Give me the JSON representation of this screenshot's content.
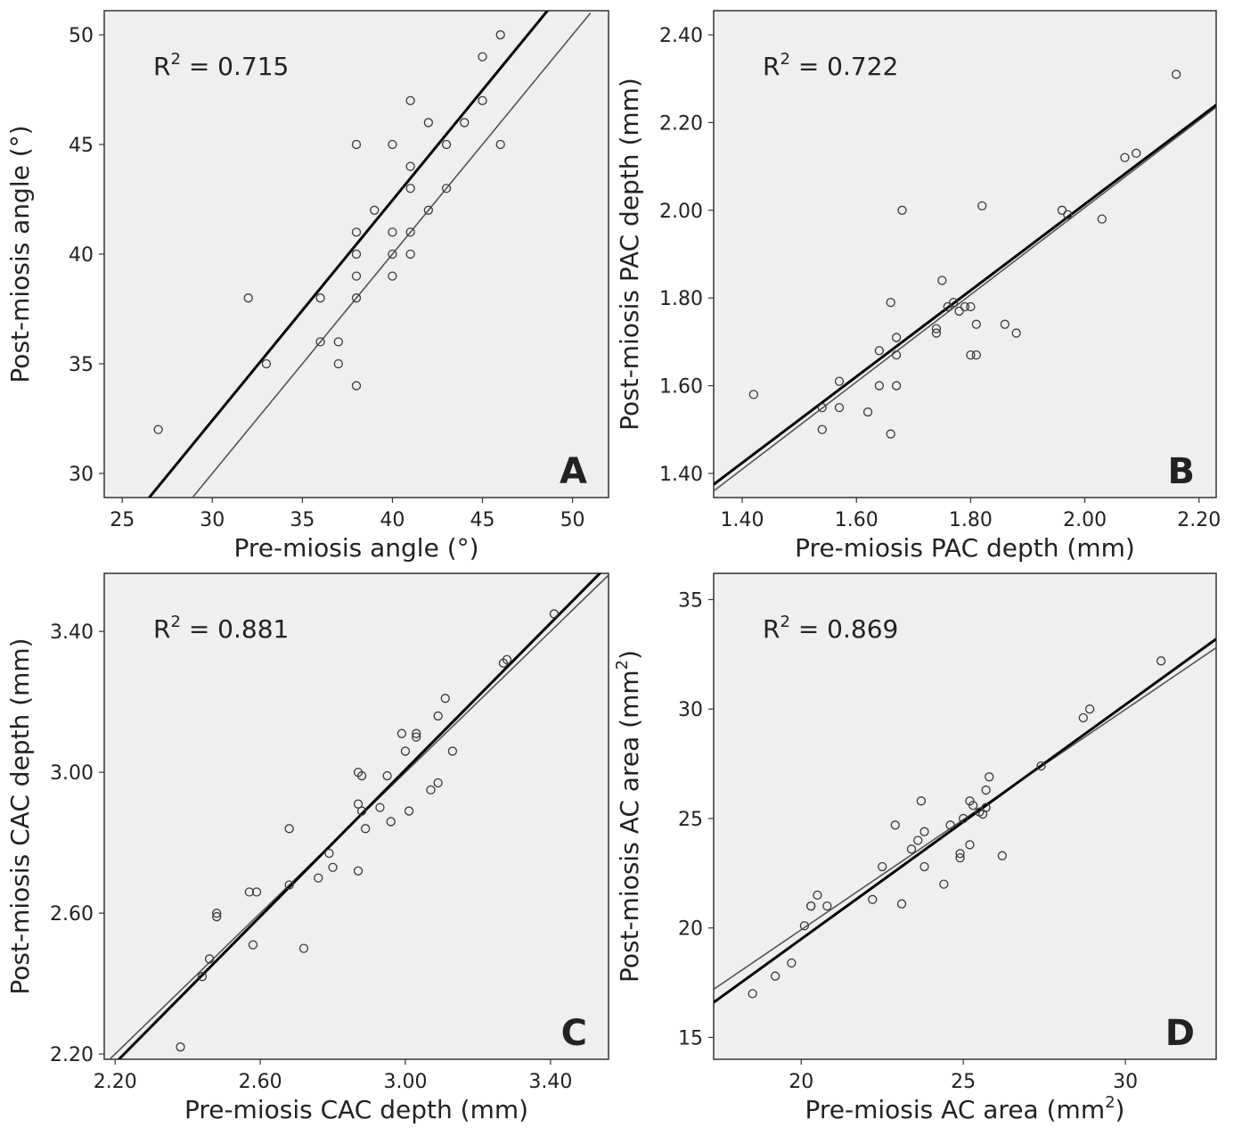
{
  "colors": {
    "plot_background": "#efefef",
    "frame": "#333333",
    "point_stroke": "#3a3a3a",
    "fit_line": "#000000",
    "identity_line": "#555555"
  },
  "chart_data": [
    {
      "type": "scatter",
      "panel_letter": "A",
      "r2_label": "R",
      "r2_sup": "2",
      "r2_value": " = 0.715",
      "xlabel": "Pre-miosis angle (°)",
      "ylabel": "Post-miosis angle (°)",
      "xlim": [
        24,
        52
      ],
      "ylim": [
        28.9,
        51.1
      ],
      "xticks": [
        25,
        30,
        35,
        40,
        45,
        50
      ],
      "yticks": [
        30,
        35,
        40,
        45,
        50
      ],
      "xtick_labels": [
        "25",
        "30",
        "35",
        "40",
        "45",
        "50"
      ],
      "ytick_labels": [
        "30",
        "35",
        "40",
        "45",
        "50"
      ],
      "points": [
        [
          27,
          32
        ],
        [
          32,
          38
        ],
        [
          33,
          35
        ],
        [
          36,
          38
        ],
        [
          36,
          36
        ],
        [
          37,
          36
        ],
        [
          37,
          35
        ],
        [
          38,
          45
        ],
        [
          38,
          41
        ],
        [
          38,
          40
        ],
        [
          38,
          39
        ],
        [
          38,
          38
        ],
        [
          38,
          34
        ],
        [
          39,
          42
        ],
        [
          40,
          45
        ],
        [
          40,
          41
        ],
        [
          40,
          40
        ],
        [
          40,
          39
        ],
        [
          41,
          47
        ],
        [
          41,
          44
        ],
        [
          41,
          43
        ],
        [
          41,
          41
        ],
        [
          41,
          40
        ],
        [
          42,
          46
        ],
        [
          42,
          42
        ],
        [
          43,
          45
        ],
        [
          43,
          43
        ],
        [
          44,
          46
        ],
        [
          45,
          49
        ],
        [
          45,
          47
        ],
        [
          46,
          50
        ],
        [
          46,
          45
        ]
      ],
      "fit_line": [
        [
          26.5,
          28.9
        ],
        [
          51,
          53.5
        ]
      ],
      "identity_line": [
        [
          28.9,
          28.9
        ],
        [
          51,
          51
        ]
      ]
    },
    {
      "type": "scatter",
      "panel_letter": "B",
      "r2_label": "R",
      "r2_sup": "2",
      "r2_value": " = 0.722",
      "xlabel": "Pre-miosis PAC depth (mm)",
      "ylabel": "Post-miosis PAC depth (mm)",
      "xlim": [
        1.35,
        2.23
      ],
      "ylim": [
        1.345,
        2.455
      ],
      "xticks": [
        1.4,
        1.6,
        1.8,
        2.0,
        2.2
      ],
      "yticks": [
        1.4,
        1.6,
        1.8,
        2.0,
        2.2,
        2.4
      ],
      "xtick_labels": [
        "1.40",
        "1.60",
        "1.80",
        "2.00",
        "2.20"
      ],
      "ytick_labels": [
        "1.40",
        "1.60",
        "1.80",
        "2.00",
        "2.20",
        "2.40"
      ],
      "points": [
        [
          1.42,
          1.58
        ],
        [
          1.54,
          1.55
        ],
        [
          1.54,
          1.5
        ],
        [
          1.57,
          1.61
        ],
        [
          1.57,
          1.55
        ],
        [
          1.62,
          1.54
        ],
        [
          1.64,
          1.68
        ],
        [
          1.64,
          1.6
        ],
        [
          1.66,
          1.79
        ],
        [
          1.66,
          1.49
        ],
        [
          1.67,
          1.71
        ],
        [
          1.67,
          1.67
        ],
        [
          1.67,
          1.6
        ],
        [
          1.68,
          2.0
        ],
        [
          1.74,
          1.73
        ],
        [
          1.74,
          1.72
        ],
        [
          1.75,
          1.84
        ],
        [
          1.76,
          1.78
        ],
        [
          1.77,
          1.79
        ],
        [
          1.78,
          1.77
        ],
        [
          1.79,
          1.78
        ],
        [
          1.8,
          1.78
        ],
        [
          1.8,
          1.67
        ],
        [
          1.81,
          1.74
        ],
        [
          1.81,
          1.67
        ],
        [
          1.82,
          2.01
        ],
        [
          1.86,
          1.74
        ],
        [
          1.88,
          1.72
        ],
        [
          1.96,
          2.0
        ],
        [
          1.97,
          1.99
        ],
        [
          2.03,
          1.98
        ],
        [
          2.07,
          2.12
        ],
        [
          2.09,
          2.13
        ],
        [
          2.16,
          2.31
        ]
      ],
      "fit_line": [
        [
          1.35,
          1.375
        ],
        [
          2.23,
          2.24
        ]
      ],
      "identity_line": [
        [
          1.35,
          1.36
        ],
        [
          2.23,
          2.235
        ]
      ]
    },
    {
      "type": "scatter",
      "panel_letter": "C",
      "r2_label": "R",
      "r2_sup": "2",
      "r2_value": " = 0.881",
      "xlabel": "Pre-miosis CAC depth (mm)",
      "ylabel": "Post-miosis CAC depth (mm)",
      "xlim": [
        2.17,
        3.56
      ],
      "ylim": [
        2.185,
        3.565
      ],
      "xticks": [
        2.2,
        2.6,
        3.0,
        3.4
      ],
      "yticks": [
        2.2,
        2.6,
        3.0,
        3.4
      ],
      "xtick_labels": [
        "2.20",
        "2.60",
        "3.00",
        "3.40"
      ],
      "ytick_labels": [
        "2.20",
        "2.60",
        "3.00",
        "3.40"
      ],
      "points": [
        [
          2.38,
          2.22
        ],
        [
          2.44,
          2.42
        ],
        [
          2.46,
          2.47
        ],
        [
          2.48,
          2.6
        ],
        [
          2.48,
          2.59
        ],
        [
          2.57,
          2.66
        ],
        [
          2.59,
          2.66
        ],
        [
          2.58,
          2.51
        ],
        [
          2.68,
          2.68
        ],
        [
          2.68,
          2.84
        ],
        [
          2.72,
          2.5
        ],
        [
          2.76,
          2.7
        ],
        [
          2.79,
          2.77
        ],
        [
          2.8,
          2.73
        ],
        [
          2.87,
          3.0
        ],
        [
          2.88,
          2.99
        ],
        [
          2.87,
          2.91
        ],
        [
          2.88,
          2.89
        ],
        [
          2.89,
          2.84
        ],
        [
          2.87,
          2.72
        ],
        [
          2.93,
          2.9
        ],
        [
          2.95,
          2.99
        ],
        [
          2.96,
          2.86
        ],
        [
          2.99,
          3.11
        ],
        [
          3.0,
          3.06
        ],
        [
          3.01,
          2.89
        ],
        [
          3.03,
          3.11
        ],
        [
          3.03,
          3.1
        ],
        [
          3.07,
          2.95
        ],
        [
          3.09,
          3.16
        ],
        [
          3.09,
          2.97
        ],
        [
          3.11,
          3.21
        ],
        [
          3.13,
          3.06
        ],
        [
          3.27,
          3.31
        ],
        [
          3.28,
          3.32
        ],
        [
          3.41,
          3.45
        ]
      ],
      "fit_line": [
        [
          2.17,
          2.143
        ],
        [
          3.56,
          3.59
        ]
      ],
      "identity_line": [
        [
          2.17,
          2.17
        ],
        [
          3.56,
          3.56
        ]
      ]
    },
    {
      "type": "scatter",
      "panel_letter": "D",
      "r2_label": "R",
      "r2_sup": "2",
      "r2_value": " = 0.869",
      "xlabel": "Pre-miosis AC area (mm",
      "xlabel_sup": "2",
      "xlabel_tail": ")",
      "ylabel": "Post-miosis AC area (mm",
      "ylabel_sup": "2",
      "ylabel_tail": ")",
      "xlim": [
        17.3,
        32.8
      ],
      "ylim": [
        14,
        36.2
      ],
      "xticks": [
        20,
        25,
        30
      ],
      "yticks": [
        15,
        20,
        25,
        30,
        35
      ],
      "xtick_labels": [
        "20",
        "25",
        "30"
      ],
      "ytick_labels": [
        "15",
        "20",
        "25",
        "30",
        "35"
      ],
      "points": [
        [
          18.5,
          17.0
        ],
        [
          19.2,
          17.8
        ],
        [
          19.7,
          18.4
        ],
        [
          20.1,
          20.1
        ],
        [
          20.3,
          21.0
        ],
        [
          20.3,
          21.0
        ],
        [
          20.5,
          21.5
        ],
        [
          20.8,
          21.0
        ],
        [
          22.2,
          21.3
        ],
        [
          22.5,
          22.8
        ],
        [
          22.9,
          24.7
        ],
        [
          23.1,
          21.1
        ],
        [
          23.4,
          23.6
        ],
        [
          23.6,
          24.0
        ],
        [
          23.7,
          25.8
        ],
        [
          23.8,
          24.4
        ],
        [
          23.8,
          22.8
        ],
        [
          24.4,
          22.0
        ],
        [
          24.6,
          24.7
        ],
        [
          24.9,
          23.4
        ],
        [
          24.9,
          23.2
        ],
        [
          25.0,
          25.0
        ],
        [
          25.2,
          25.8
        ],
        [
          25.2,
          23.8
        ],
        [
          25.3,
          25.6
        ],
        [
          25.5,
          25.3
        ],
        [
          25.6,
          25.2
        ],
        [
          25.7,
          25.5
        ],
        [
          25.7,
          26.3
        ],
        [
          25.8,
          26.9
        ],
        [
          26.2,
          23.3
        ],
        [
          27.4,
          27.4
        ],
        [
          28.7,
          29.6
        ],
        [
          28.9,
          30.0
        ],
        [
          31.1,
          32.2
        ]
      ],
      "fit_line": [
        [
          17.3,
          16.6
        ],
        [
          32.8,
          33.2
        ]
      ],
      "identity_line": [
        [
          17.3,
          17.2
        ],
        [
          32.8,
          32.8
        ]
      ]
    }
  ]
}
